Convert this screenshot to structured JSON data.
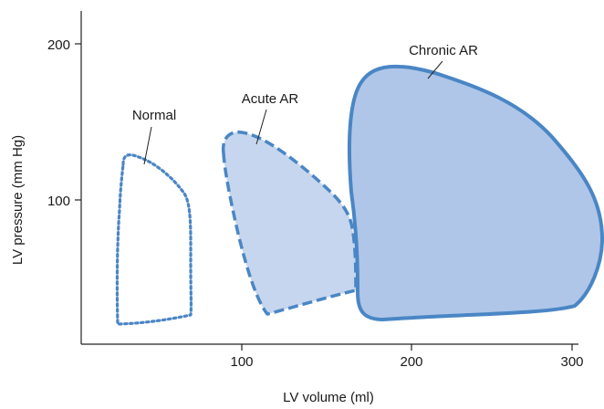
{
  "figure": {
    "type": "pressure-volume loops",
    "x_axis": {
      "label": "LV volume (ml)",
      "ticks": [
        "100",
        "200",
        "300"
      ]
    },
    "y_axis": {
      "label": "LV pressure (mm Hg)",
      "ticks": [
        "100",
        "200"
      ]
    },
    "loops": [
      {
        "label": "Normal",
        "line_style": "dotted",
        "fill": "none"
      },
      {
        "label": "Acute AR",
        "line_style": "dashed",
        "fill": "light blue"
      },
      {
        "label": "Chronic AR",
        "line_style": "solid",
        "fill": "blue"
      }
    ],
    "colors": {
      "loop_stroke": "#4a86c5",
      "acute_fill": "#c6d6ee",
      "chronic_fill": "#afc6e8",
      "axis": "#222222"
    }
  }
}
